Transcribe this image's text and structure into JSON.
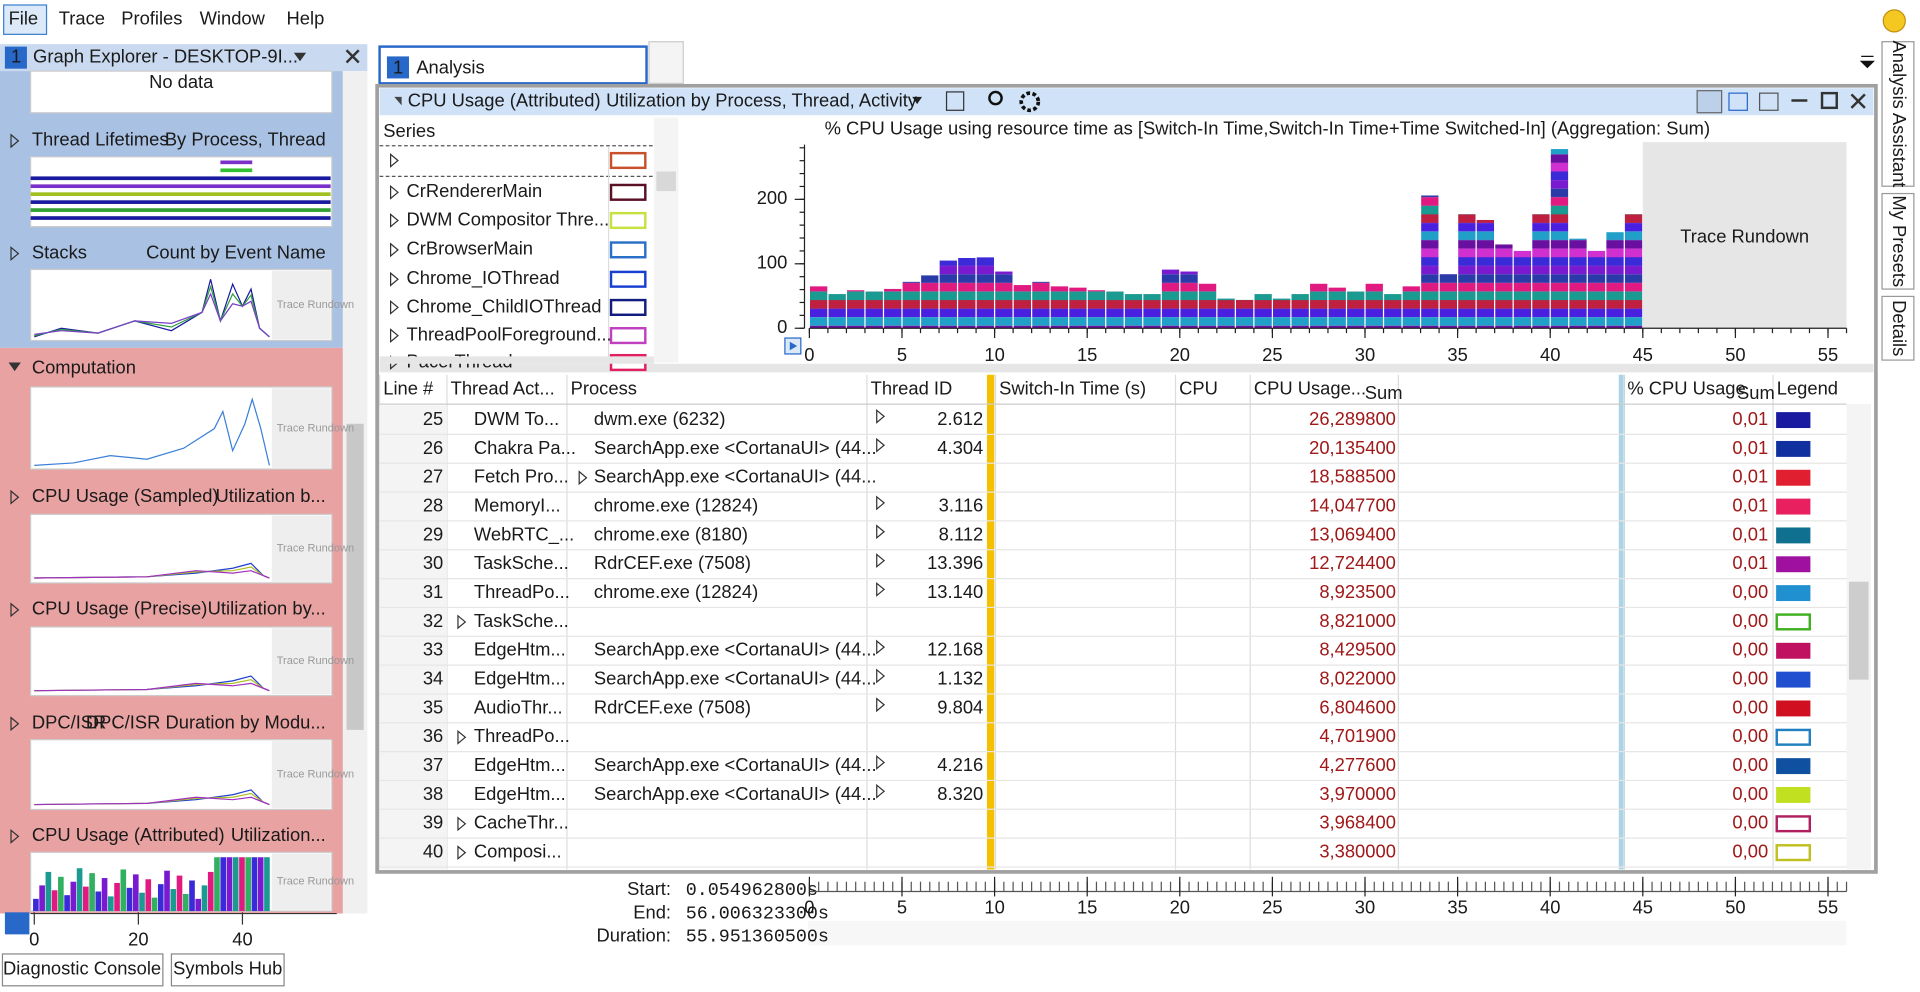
{
  "menu": [
    "File",
    "Trace",
    "Profiles",
    "Window",
    "Help"
  ],
  "graph_explorer": {
    "tab_number": "1",
    "title": "Graph Explorer - DESKTOP-9I...",
    "no_data": "No data",
    "rundown": "Trace Rundown",
    "sections": [
      {
        "graphs": [
          {
            "title": "Thread Lifetimes",
            "preset": "By Process, Thread"
          },
          {
            "title": "Stacks",
            "preset": "Count by Event Name"
          }
        ]
      },
      {
        "name": "Computation",
        "graphs": [
          {
            "title": "CPU Usage (Sampled)",
            "preset": "Utilization b..."
          },
          {
            "title": "CPU Usage (Precise)",
            "preset": "Utilization by..."
          },
          {
            "title": "DPC/ISR",
            "preset": "DPC/ISR Duration by Modu..."
          },
          {
            "title": "CPU Usage (Attributed)",
            "preset": "Utilization..."
          }
        ]
      }
    ],
    "axis_ticks": [
      0,
      20,
      40
    ]
  },
  "analysis": {
    "tab_number": "1",
    "tab": "Analysis",
    "graph": "CPU Usage (Attributed)",
    "preset": "Utilization by Process, Thread, Activity",
    "series_header": "Series",
    "series": [
      {
        "color": "#c8502a"
      },
      {
        "name": "CrRendererMain",
        "color": "#5a1024"
      },
      {
        "name": "DWM Compositor Thre...",
        "color": "#c8e040"
      },
      {
        "name": "CrBrowserMain",
        "color": "#2a70c8"
      },
      {
        "name": "Chrome_IOThread",
        "color": "#1840d0"
      },
      {
        "name": "Chrome_ChildIOThread",
        "color": "#101c80"
      },
      {
        "name": "ThreadPoolForeground...",
        "color": "#c040c0"
      },
      {
        "name": "PacerThread",
        "color": "#e02060"
      }
    ]
  },
  "chart_data": {
    "type": "bar",
    "title": "% CPU Usage using resource time as [Switch-In Time,Switch-In Time+Time Switched-In] (Aggregation: Sum)",
    "x": [
      0,
      1,
      2,
      3,
      4,
      5,
      6,
      7,
      8,
      9,
      10,
      11,
      12,
      13,
      14,
      15,
      16,
      17,
      18,
      19,
      20,
      21,
      22,
      23,
      24,
      25,
      26,
      27,
      28,
      29,
      30,
      31,
      32,
      33,
      34,
      35,
      36,
      37,
      38,
      39,
      40,
      41,
      42,
      43,
      44
    ],
    "values": [
      65,
      53,
      59,
      57,
      61,
      72,
      82,
      105,
      109,
      110,
      88,
      67,
      72,
      65,
      63,
      59,
      57,
      53,
      53,
      91,
      88,
      69,
      46,
      44,
      53,
      46,
      53,
      69,
      63,
      57,
      69,
      53,
      65,
      206,
      84,
      177,
      168,
      130,
      120,
      177,
      278,
      139,
      120,
      149,
      177
    ],
    "colors": [
      "#3a2ad8",
      "#7a1ad0",
      "#2a3aa8",
      "#e01a80",
      "#1a9a90",
      "#c02040",
      "#4a20e0",
      "#20a0c8",
      "#6a10a0",
      "#d030d0"
    ],
    "xlim": [
      0,
      56
    ],
    "xticks": [
      0,
      5,
      10,
      15,
      20,
      25,
      30,
      35,
      40,
      45,
      50,
      55
    ],
    "ylim": [
      0,
      285
    ],
    "yticks": [
      0,
      100,
      200
    ],
    "annotations": [
      {
        "text": "Trace Rundown",
        "x": 45
      }
    ]
  },
  "table": {
    "columns": [
      "Line #",
      "Thread Act...",
      "Process",
      "Thread ID",
      "Switch-In Time (s)",
      "CPU",
      "CPU Usage...",
      "% CPU Usage",
      "Legend"
    ],
    "sum_label": "Sum",
    "rows": [
      {
        "line": "25",
        "activity": "DWM To...",
        "process": "dwm.exe (6232)",
        "thread_id": "2.612",
        "cpu_usage": "26,289800",
        "percent": "0,01",
        "color": "#1a1aa0",
        "outline": false,
        "expander": "thread_id"
      },
      {
        "line": "26",
        "activity": "Chakra Pa...",
        "process": "SearchApp.exe <CortanaUI> (44...",
        "thread_id": "4.304",
        "cpu_usage": "20,135400",
        "percent": "0,01",
        "color": "#1030a0",
        "outline": false,
        "expander": "thread_id"
      },
      {
        "line": "27",
        "activity": "Fetch Pro...",
        "process": "SearchApp.exe <CortanaUI> (44...",
        "cpu_usage": "18,588500",
        "percent": "0,01",
        "color": "#e02030",
        "outline": false,
        "expander": "process"
      },
      {
        "line": "28",
        "activity": "MemoryI...",
        "process": "chrome.exe (12824)",
        "thread_id": "3.116",
        "cpu_usage": "14,047700",
        "percent": "0,01",
        "color": "#e82060",
        "outline": false,
        "expander": "thread_id"
      },
      {
        "line": "29",
        "activity": "WebRTC_...",
        "process": "chrome.exe (8180)",
        "thread_id": "8.112",
        "cpu_usage": "13,069400",
        "percent": "0,01",
        "color": "#107090",
        "outline": false,
        "expander": "thread_id"
      },
      {
        "line": "30",
        "activity": "TaskSche...",
        "process": "RdrCEF.exe (7508)",
        "thread_id": "13.396",
        "cpu_usage": "12,724400",
        "percent": "0,01",
        "color": "#a010a0",
        "outline": false,
        "expander": "thread_id"
      },
      {
        "line": "31",
        "activity": "ThreadPo...",
        "process": "chrome.exe (12824)",
        "thread_id": "13.140",
        "cpu_usage": "8,923500",
        "percent": "0,00",
        "color": "#2090d0",
        "outline": false,
        "expander": "thread_id"
      },
      {
        "line": "32",
        "activity": "TaskSche...",
        "cpu_usage": "8,821000",
        "percent": "0,00",
        "color": "#40b020",
        "outline": true,
        "expander": "activity"
      },
      {
        "line": "33",
        "activity": "EdgeHtm...",
        "process": "SearchApp.exe <CortanaUI> (44...",
        "thread_id": "12.168",
        "cpu_usage": "8,429500",
        "percent": "0,00",
        "color": "#c01060",
        "outline": false,
        "expander": "thread_id"
      },
      {
        "line": "34",
        "activity": "EdgeHtm...",
        "process": "SearchApp.exe <CortanaUI> (44...",
        "thread_id": "1.132",
        "cpu_usage": "8,022000",
        "percent": "0,00",
        "color": "#2050d0",
        "outline": false,
        "expander": "thread_id"
      },
      {
        "line": "35",
        "activity": "AudioThr...",
        "process": "RdrCEF.exe (7508)",
        "thread_id": "9.804",
        "cpu_usage": "6,804600",
        "percent": "0,00",
        "color": "#d01020",
        "outline": false,
        "expander": "thread_id"
      },
      {
        "line": "36",
        "activity": "ThreadPo...",
        "cpu_usage": "4,701900",
        "percent": "0,00",
        "color": "#2080c0",
        "outline": true,
        "expander": "activity"
      },
      {
        "line": "37",
        "activity": "EdgeHtm...",
        "process": "SearchApp.exe <CortanaUI> (44...",
        "thread_id": "4.216",
        "cpu_usage": "4,277600",
        "percent": "0,00",
        "color": "#1050a0",
        "outline": false,
        "expander": "thread_id"
      },
      {
        "line": "38",
        "activity": "EdgeHtm...",
        "process": "SearchApp.exe <CortanaUI> (44...",
        "thread_id": "8.320",
        "cpu_usage": "3,970000",
        "percent": "0,00",
        "color": "#c0e020",
        "outline": false,
        "expander": "thread_id"
      },
      {
        "line": "39",
        "activity": "CacheThr...",
        "cpu_usage": "3,968400",
        "percent": "0,00",
        "color": "#b02060",
        "outline": true,
        "expander": "activity"
      },
      {
        "line": "40",
        "activity": "Composi...",
        "cpu_usage": "3,380000",
        "percent": "0,00",
        "color": "#c0c020",
        "outline": true,
        "expander": "activity"
      }
    ]
  },
  "timeline": {
    "start_label": "Start:",
    "start": "0.054962800s",
    "end_label": "End:",
    "end": "56.006323300s",
    "duration_label": "Duration:",
    "duration": "55.951360500s",
    "xlim": [
      0,
      56
    ],
    "ticks": [
      0,
      5,
      10,
      15,
      20,
      25,
      30,
      35,
      40,
      45,
      50,
      55
    ]
  },
  "side_tabs": [
    "Analysis Assistant",
    "My Presets",
    "Details"
  ],
  "buttons": [
    "Diagnostic Console",
    "Symbols Hub"
  ]
}
